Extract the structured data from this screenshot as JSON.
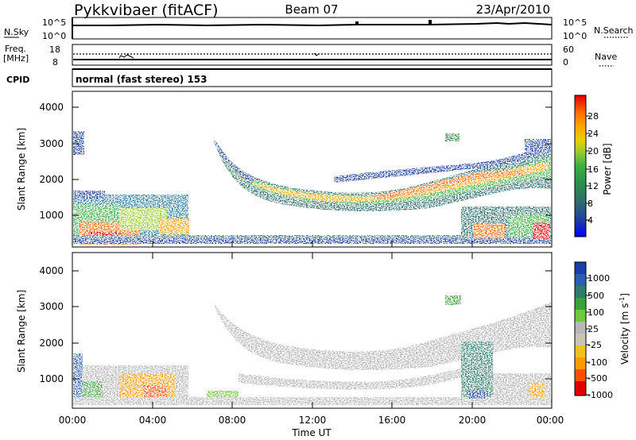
{
  "header": {
    "station": "Pykkvibaer (fitACF)",
    "beam": "Beam 07",
    "date": "23/Apr/2010"
  },
  "status_panels": {
    "nsky_label": "N.Sky",
    "nsky_ticks": [
      "10^5",
      "10^0"
    ],
    "nsearch_label": "N.Search",
    "nsearch_ticks": [
      "10^5",
      "10^0"
    ],
    "freq_label": "Freq.",
    "freq_unit": "[MHz]",
    "freq_ticks": [
      "18",
      "8"
    ],
    "nave_label": "Nave",
    "nave_ticks": [
      "60",
      "0"
    ],
    "cpid_label": "CPID",
    "cpid_text": "normal (fast stereo) 153"
  },
  "colors": {
    "power_scale": [
      "#0000ff",
      "#1e3fa0",
      "#2e6e6e",
      "#2a8f4a",
      "#3cb043",
      "#9acd32",
      "#e8d000",
      "#ffa500",
      "#ff6a00",
      "#ff2000",
      "#e00000"
    ],
    "velocity_scale": [
      "#1b3fa8",
      "#2d5fb0",
      "#2e7d6a",
      "#3aa23a",
      "#6ccb3a",
      "#b8b8b8",
      "#c8c4b8",
      "#f0c020",
      "#ff9a00",
      "#ff5000",
      "#e00000"
    ],
    "ground_scatter": "#b4b4b4"
  },
  "chart_data": [
    {
      "type": "heatmap",
      "panel": "power",
      "ylabel": "Slant Range [km]",
      "y_ticks": [
        "4000",
        "3000",
        "2000",
        "1000"
      ],
      "ylim": [
        200,
        4600
      ],
      "colorbar_label": "Power [dB]",
      "colorbar_ticks": [
        "28",
        "24",
        "20",
        "16",
        "12",
        "8",
        "4"
      ],
      "features": [
        {
          "t_start": 0.0,
          "t_end": 5.9,
          "range_min": 300,
          "range_max": 1700,
          "power_db": 18
        },
        {
          "t_start": 7.0,
          "t_end": 24.0,
          "range_min": 1400,
          "range_max": 3100,
          "power_db": 16
        },
        {
          "t_start": 19.5,
          "t_end": 24.0,
          "range_min": 300,
          "range_max": 1200,
          "power_db": 22
        }
      ]
    },
    {
      "type": "heatmap",
      "panel": "velocity",
      "ylabel": "Slant Range [km]",
      "y_ticks": [
        "4000",
        "3000",
        "2000",
        "1000"
      ],
      "ylim": [
        200,
        4600
      ],
      "colorbar_label": "Velocity [m s",
      "colorbar_label_superscript": "-1",
      "colorbar_ticks": [
        "1000",
        "500",
        "100",
        "25",
        "-25",
        "-100",
        "-500",
        "-1000"
      ],
      "x_ticks": [
        "00:00",
        "04:00",
        "08:00",
        "12:00",
        "16:00",
        "20:00",
        "00:00"
      ],
      "xlabel": "Time UT"
    }
  ]
}
